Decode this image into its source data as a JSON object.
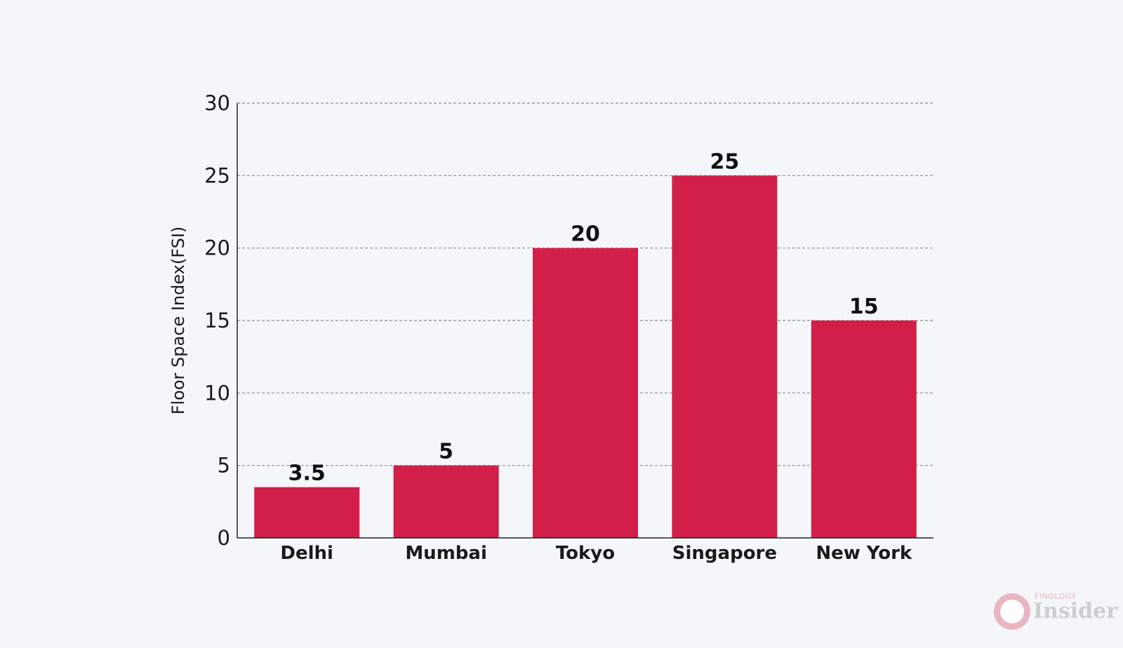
{
  "colors": {
    "background": "#f5f6f9",
    "bar": "#d11f4a",
    "grid": "#8a8a8a",
    "axis": "#222222"
  },
  "chart_data": {
    "type": "bar",
    "categories": [
      "Delhi",
      "Mumbai",
      "Tokyo",
      "Singapore",
      "New York"
    ],
    "values": [
      3.5,
      5,
      20,
      25,
      15
    ],
    "data_labels": [
      "3.5",
      "5",
      "20",
      "25",
      "15"
    ],
    "title": "",
    "xlabel": "",
    "ylabel": "Floor Space Index(FSI)",
    "ylim": [
      0,
      30
    ],
    "yticks": [
      0,
      5,
      10,
      15,
      20,
      25,
      30
    ],
    "grid": "horizontal dashed",
    "legend": "none"
  },
  "watermark": {
    "brand_small": "FINOLOGY",
    "brand_big": "Insider"
  }
}
